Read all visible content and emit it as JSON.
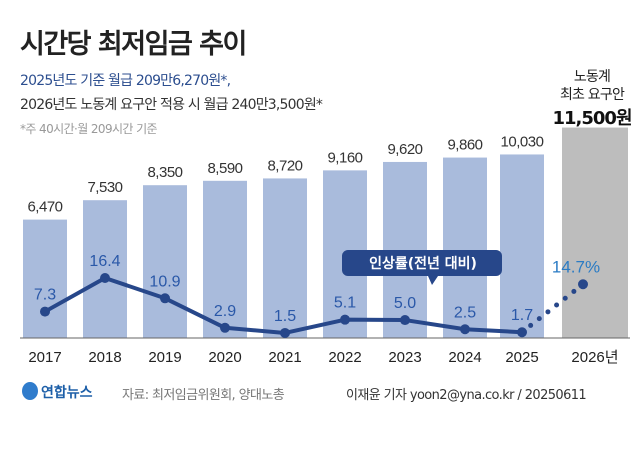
{
  "header": {
    "title": "시간당 최저임금 추이",
    "subtitle_1": "2025년도 기준 월급 209만6,270원*,",
    "subtitle_2": "2026년도 노동계 요구안 적용 시 월급 240만3,500원*",
    "note": "*주 40시간·월 209시간 기준",
    "request_label": "노동계\n최초 요구안",
    "request_value": "11,500원"
  },
  "chart_data": {
    "type": "bar+line",
    "categories": [
      "2017",
      "2018",
      "2019",
      "2020",
      "2021",
      "2022",
      "2023",
      "2024",
      "2025",
      "2026년"
    ],
    "series": [
      {
        "name": "",
        "type": "bar",
        "values": [
          6470,
          7530,
          8350,
          8590,
          8720,
          9160,
          9620,
          9860,
          10030,
          11500
        ],
        "labels": [
          "6,470",
          "7,530",
          "8,350",
          "8,590",
          "8,720",
          "9,160",
          "9,620",
          "9,860",
          "10,030",
          ""
        ],
        "colors": {
          "actual": "#a9bbdc",
          "request": "#bdbdbd"
        }
      },
      {
        "name": "인상률(전년 대비)",
        "type": "line",
        "values": [
          7.3,
          16.4,
          10.9,
          2.9,
          1.5,
          5.1,
          5.0,
          2.5,
          1.7,
          14.7
        ],
        "labels": [
          "7.3",
          "16.4",
          "10.9",
          "2.9",
          "1.5",
          "5.1",
          "5.0",
          "2.5",
          "1.7",
          "14.7%"
        ],
        "color": "#27478a",
        "last_segment": "dotted"
      }
    ],
    "legend_placement": "callout",
    "grid": false
  },
  "footer": {
    "logo": "연합뉴스",
    "source": "자료: 최저임금위원회, 양대노총",
    "credit": "이재윤 기자 yoon2@yna.co.kr / 20250611"
  }
}
